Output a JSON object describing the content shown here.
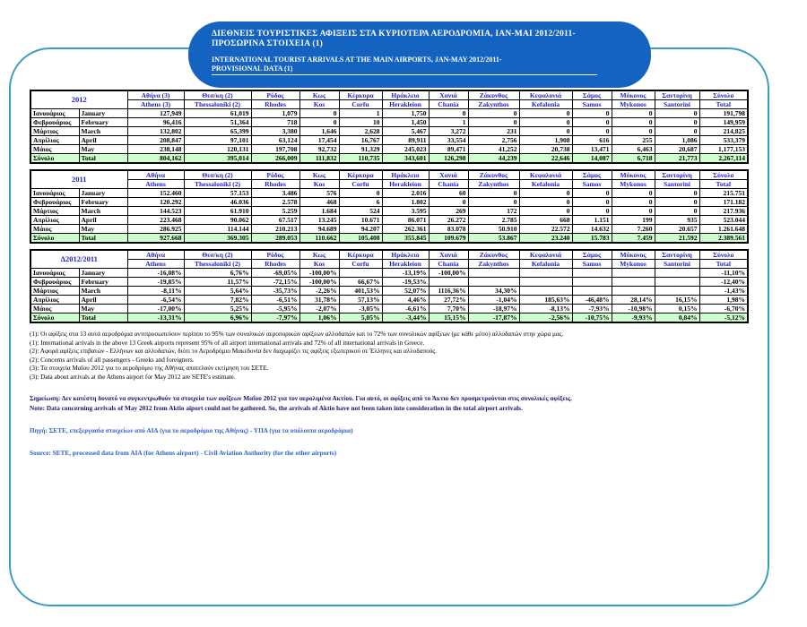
{
  "header": {
    "title_gr_line1": "ΔΙΕΘΝΕΙΣ ΤΟΥΡΙΣΤΙΚΕΣ ΑΦΙΞΕΙΣ ΣΤΑ ΚΥΡΙΟΤΕΡΑ ΑΕΡΟΔΡΟΜΙΑ,  ΙΑΝ-ΜΑΙ 2012/2011-",
    "title_gr_line2": "ΠΡΟΣΩΡΙΝΑ ΣΤΟΙΧΕΙΑ (1)",
    "title_en_line1": "INTERNATIONAL TOURIST ARRIVALS AT THE MAIN AIRPORTS,  JAN-MAY  2012/2011-",
    "title_en_line2": "PROVISIONAL DATA (1)"
  },
  "colors": {
    "banner_bg": "#1563C1",
    "frame_border": "#3D9CC6",
    "header_text_blue": "#2222CC",
    "total_row_bg": "#CCFFCC",
    "note_navy": "#14146E",
    "note_blue": "#3060C8"
  },
  "tables": [
    {
      "year_label": "2012",
      "airports_gr": [
        "Αθήνα (3)",
        "Θεσ/κη (2)",
        "Ρόδος",
        "Κως",
        "Κέρκυρα",
        "Ηράκλειο",
        "Χανιά",
        "Ζάκυνθος",
        "Κεφαλονιά",
        "Σάμος",
        "Μύκονος",
        "Σαντορίνη",
        "Σύνολο"
      ],
      "airports_en": [
        "Athens (3)",
        "Thessaloniki (2)",
        "Rhodes",
        "Kos",
        "Corfu",
        "Herakleion",
        "Chania",
        "Zakynthos",
        "Kefalonia",
        "Samos",
        "Mykonos",
        "Santorini",
        "Total"
      ],
      "rows": [
        {
          "month_gr": "Ιανουάριος",
          "month_en": "January",
          "is_total": false,
          "values": [
            "127,949",
            "61,019",
            "1,079",
            "0",
            "1",
            "1,750",
            "0",
            "0",
            "0",
            "0",
            "0",
            "0",
            "191,798"
          ]
        },
        {
          "month_gr": "Φεβρουάριος",
          "month_en": "February",
          "is_total": false,
          "values": [
            "96,416",
            "51,364",
            "718",
            "0",
            "10",
            "1,450",
            "1",
            "0",
            "0",
            "0",
            "0",
            "0",
            "149,959"
          ]
        },
        {
          "month_gr": "Μάρτιος",
          "month_en": "March",
          "is_total": false,
          "values": [
            "132,802",
            "65,399",
            "3,380",
            "1,646",
            "2,628",
            "5,467",
            "3,272",
            "231",
            "0",
            "0",
            "0",
            "0",
            "214,825"
          ]
        },
        {
          "month_gr": "Απρίλιος",
          "month_en": "April",
          "is_total": false,
          "values": [
            "208,847",
            "97,101",
            "63,124",
            "17,454",
            "16,767",
            "89,911",
            "33,554",
            "2,756",
            "1,908",
            "616",
            "255",
            "1,086",
            "533,379"
          ]
        },
        {
          "month_gr": "Μάιος",
          "month_en": "May",
          "is_total": false,
          "values": [
            "238,148",
            "120,131",
            "197,708",
            "92,732",
            "91,329",
            "245,023",
            "89,471",
            "41,252",
            "20,738",
            "13,471",
            "6,463",
            "20,687",
            "1,177,153"
          ]
        },
        {
          "month_gr": "Σύνολο",
          "month_en": "Total",
          "is_total": true,
          "values": [
            "804,162",
            "395,014",
            "266,009",
            "111,832",
            "110,735",
            "343,601",
            "126,298",
            "44,239",
            "22,646",
            "14,087",
            "6,718",
            "21,773",
            "2,267,114"
          ]
        }
      ]
    },
    {
      "year_label": "2011",
      "airports_gr": [
        "Αθήνα",
        "Θεσ/κη (2)",
        "Ρόδος",
        "Κως",
        "Κέρκυρα",
        "Ηράκλειο",
        "Χανιά",
        "Ζάκυνθος",
        "Κεφαλονιά",
        "Σάμος",
        "Μύκονος",
        "Σαντορίνη",
        "Σύνολο"
      ],
      "airports_en": [
        "Athens",
        "Thessaloniki (2)",
        "Rhodes",
        "Kos",
        "Corfu",
        "Herakleion",
        "Chania",
        "Zakynthos",
        "Kefalonia",
        "Samos",
        "Mykonos",
        "Santorini",
        "Total"
      ],
      "rows": [
        {
          "month_gr": "Ιανουάριος",
          "month_en": "January",
          "is_total": false,
          "values": [
            "152.460",
            "57.153",
            "3.486",
            "576",
            "0",
            "2.016",
            "60",
            "0",
            "0",
            "0",
            "0",
            "0",
            "215.751"
          ]
        },
        {
          "month_gr": "Φεβρουάριος",
          "month_en": "February",
          "is_total": false,
          "values": [
            "120.292",
            "46.036",
            "2.578",
            "468",
            "6",
            "1.802",
            "0",
            "0",
            "0",
            "0",
            "0",
            "0",
            "171.182"
          ]
        },
        {
          "month_gr": "Μάρτιος",
          "month_en": "March",
          "is_total": false,
          "values": [
            "144.523",
            "61.910",
            "5.259",
            "1.684",
            "524",
            "3.595",
            "269",
            "172",
            "0",
            "0",
            "0",
            "0",
            "217.936"
          ]
        },
        {
          "month_gr": "Απρίλιος",
          "month_en": "April",
          "is_total": false,
          "values": [
            "223.468",
            "90.062",
            "67.517",
            "13.245",
            "10.671",
            "86.071",
            "26.272",
            "2.785",
            "668",
            "1.151",
            "199",
            "935",
            "523.044"
          ]
        },
        {
          "month_gr": "Μάιος",
          "month_en": "May",
          "is_total": false,
          "values": [
            "286.925",
            "114.144",
            "210.213",
            "94.689",
            "94.207",
            "262.361",
            "83.078",
            "50.910",
            "22.572",
            "14.632",
            "7.260",
            "20.657",
            "1.261.648"
          ]
        },
        {
          "month_gr": "Σύνολο",
          "month_en": "Total",
          "is_total": true,
          "values": [
            "927.668",
            "369.305",
            "289.053",
            "110.662",
            "105.408",
            "355.845",
            "109.679",
            "53.867",
            "23.240",
            "15.783",
            "7.459",
            "21.592",
            "2.389.561"
          ]
        }
      ]
    },
    {
      "year_label": "Δ2012/2011",
      "airports_gr": [
        "Αθήνα",
        "Θεσ/κη (2)",
        "Ρόδος",
        "Κως",
        "Κέρκυρα",
        "Ηράκλειο",
        "Χανιά",
        "Ζάκυνθος",
        "Κεφαλονιά",
        "Σάμος",
        "Μύκονος",
        "Σαντορίνη",
        "Σύνολο"
      ],
      "airports_en": [
        "Athens",
        "Thessaloniki (2)",
        "Rhodes",
        "Kos",
        "Corfu",
        "Herakleion",
        "Chania",
        "Zakynthos",
        "Kefalonia",
        "Samos",
        "Mykonos",
        "Santorini",
        "Total"
      ],
      "rows": [
        {
          "month_gr": "Ιανουάριος",
          "month_en": "January",
          "is_total": false,
          "values": [
            "-16,08%",
            "6,76%",
            "-69,05%",
            "-100,00%",
            "",
            "-13,19%",
            "-100,00%",
            "",
            "",
            "",
            "",
            "",
            "-11,10%"
          ]
        },
        {
          "month_gr": "Φεβρουάριος",
          "month_en": "February",
          "is_total": false,
          "values": [
            "-19,85%",
            "11,57%",
            "-72,15%",
            "-100,00%",
            "66,67%",
            "-19,53%",
            "",
            "",
            "",
            "",
            "",
            "",
            "-12,40%"
          ]
        },
        {
          "month_gr": "Μάρτιος",
          "month_en": "March",
          "is_total": false,
          "values": [
            "-8,11%",
            "5,64%",
            "-35,73%",
            "-2,26%",
            "401,53%",
            "52,07%",
            "1116,36%",
            "34,30%",
            "",
            "",
            "",
            "",
            "-1,43%"
          ]
        },
        {
          "month_gr": "Απρίλιος",
          "month_en": "April",
          "is_total": false,
          "values": [
            "-6,54%",
            "7,82%",
            "-6,51%",
            "31,78%",
            "57,13%",
            "4,46%",
            "27,72%",
            "-1,04%",
            "185,63%",
            "-46,48%",
            "28,14%",
            "16,15%",
            "1,98%"
          ]
        },
        {
          "month_gr": "Μάιος",
          "month_en": "May",
          "is_total": false,
          "values": [
            "-17,00%",
            "5,25%",
            "-5,95%",
            "-2,07%",
            "-3,05%",
            "-6,61%",
            "7,70%",
            "-18,97%",
            "-8,13%",
            "-7,93%",
            "-10,98%",
            "0,15%",
            "-6,70%"
          ]
        },
        {
          "month_gr": "Σύνολο",
          "month_en": "Total",
          "is_total": true,
          "values": [
            "-13,31%",
            "6,96%",
            "-7,97%",
            "1,06%",
            "5,05%",
            "-3,44%",
            "15,15%",
            "-17,87%",
            "-2,56%",
            "-10,75%",
            "-9,93%",
            "0,84%",
            "-5,12%"
          ]
        }
      ]
    }
  ],
  "footnotes": [
    "(1): Οι αφίξεις στα 13 αυτά αεροδρόμια αντιπροσωπεύουν περίπου το 95% των συνολικών αεροπορικών αφίξεων αλλοδαπών και το 72% των συνολικών αφίξεων (με κάθε μέσο) αλλοδαπών στην χώρα μας.",
    "(1): International arrivals in the above 13 Greek airports represent 95% of all airport international arrivals and 72% of all international arrivals in Greece.",
    "(2): Αφορά αφίξεις επιβατών - Ελλήνων και αλλοδαπών, διότι το Αεροδρόμιο Μακεδονία δεν διαχωρίζει τις αφίξεις εξωτερικού σε Έλληνες και αλλοδαπούς.",
    "(2): Concerns arrivals of all passengers - Greeks and foreigners.",
    "(3): Τα στοιχεία Μαΐου 2012 για το αεροδρόμιο της Αθήνας αποτελούν εκτίμηση του ΣΕΤΕ.",
    "(3): Data about arrivals at the Athens airport for May 2012 are SETE's estimate."
  ],
  "notes": {
    "simiosi_gr": "Σημείωση: Δεν κατέστη δυνατό να συγκεντρωθούν τα στοιχεία των αφίξεων Μαΐου 2012 για τον αερολιμένα Ακτίου. Για αυτό, οι αφίξεις από το Άκτιο δεν προσμετρούνται στις συνολικές αφίξεις.",
    "note_en": "Note: Data concerning arrivals of May 2012 from Aktio aiport could not be gathered. So, the arrivals of Aktio have not been taken into consideration in the total airport arrivals.",
    "pigi_gr": "Πηγή: ΣΕΤΕ, επεξεργασία στοιχείων από ΑΙΑ (για το αεροδρόμιο της Αθήνας) - ΥΠΑ (για τα υπόλοιπα αεροδρόμια)",
    "source_en": "Source: SETE, processed data from AIA (for Athens airport) - Civil Aviation Authority (for the other airports)"
  }
}
